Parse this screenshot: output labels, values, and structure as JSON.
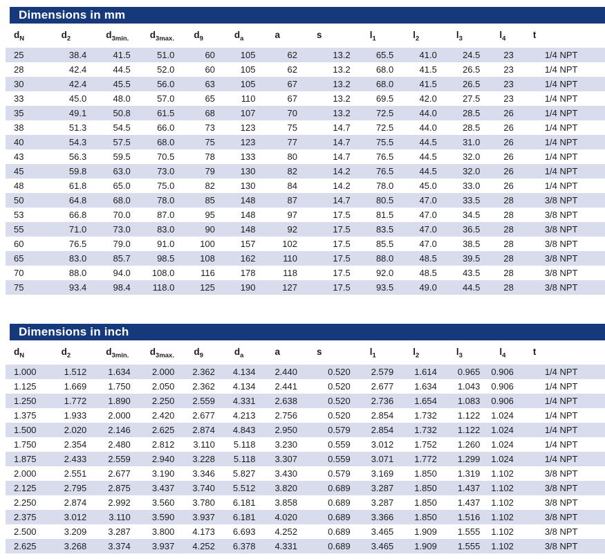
{
  "colors": {
    "title_bar_bg": "#15397b",
    "title_text": "#ffffff",
    "row_shade": "#d9dcec",
    "body_text": "#1c1c1c"
  },
  "columns": [
    {
      "base": "d",
      "sub": "N"
    },
    {
      "base": "d",
      "sub": "2"
    },
    {
      "base": "d",
      "sub": "3min."
    },
    {
      "base": "d",
      "sub": "3max."
    },
    {
      "base": "d",
      "sub": "9"
    },
    {
      "base": "d",
      "sub": "a"
    },
    {
      "base": "a",
      "sub": ""
    },
    {
      "base": "s",
      "sub": ""
    },
    {
      "base": "l",
      "sub": "1"
    },
    {
      "base": "l",
      "sub": "2"
    },
    {
      "base": "l",
      "sub": "3"
    },
    {
      "base": "l",
      "sub": "4"
    },
    {
      "base": "t",
      "sub": ""
    }
  ],
  "tables": [
    {
      "title": "Dimensions in mm",
      "rows": [
        [
          "25",
          "38.4",
          "41.5",
          "51.0",
          "60",
          "105",
          "62",
          "13.2",
          "65.5",
          "41.0",
          "24.5",
          "23",
          "1/4 NPT"
        ],
        [
          "28",
          "42.4",
          "44.5",
          "52.0",
          "60",
          "105",
          "62",
          "13.2",
          "68.0",
          "41.5",
          "26.5",
          "23",
          "1/4 NPT"
        ],
        [
          "30",
          "42.4",
          "45.5",
          "56.0",
          "63",
          "105",
          "67",
          "13.2",
          "68.0",
          "41.5",
          "26.5",
          "23",
          "1/4 NPT"
        ],
        [
          "33",
          "45.0",
          "48.0",
          "57.0",
          "65",
          "110",
          "67",
          "13.2",
          "69.5",
          "42.0",
          "27.5",
          "23",
          "1/4 NPT"
        ],
        [
          "35",
          "49.1",
          "50.8",
          "61.5",
          "68",
          "107",
          "70",
          "13.2",
          "72.5",
          "44.0",
          "28.5",
          "26",
          "1/4 NPT"
        ],
        [
          "38",
          "51.3",
          "54.5",
          "66.0",
          "73",
          "123",
          "75",
          "14.7",
          "72.5",
          "44.0",
          "28.5",
          "26",
          "1/4 NPT"
        ],
        [
          "40",
          "54.3",
          "57.5",
          "68.0",
          "75",
          "123",
          "77",
          "14.7",
          "75.5",
          "44.5",
          "31.0",
          "26",
          "1/4 NPT"
        ],
        [
          "43",
          "56.3",
          "59.5",
          "70.5",
          "78",
          "133",
          "80",
          "14.7",
          "76.5",
          "44.5",
          "32.0",
          "26",
          "1/4 NPT"
        ],
        [
          "45",
          "59.8",
          "63.0",
          "73.0",
          "79",
          "130",
          "82",
          "14.2",
          "76.5",
          "44.5",
          "32.0",
          "26",
          "1/4 NPT"
        ],
        [
          "48",
          "61.8",
          "65.0",
          "75.0",
          "82",
          "130",
          "84",
          "14.2",
          "78.0",
          "45.0",
          "33.0",
          "26",
          "1/4 NPT"
        ],
        [
          "50",
          "64.8",
          "68.0",
          "78.0",
          "85",
          "148",
          "87",
          "14.7",
          "80.5",
          "47.0",
          "33.5",
          "28",
          "3/8 NPT"
        ],
        [
          "53",
          "66.8",
          "70.0",
          "87.0",
          "95",
          "148",
          "97",
          "17.5",
          "81.5",
          "47.0",
          "34.5",
          "28",
          "3/8 NPT"
        ],
        [
          "55",
          "71.0",
          "73.0",
          "83.0",
          "90",
          "148",
          "92",
          "17.5",
          "83.5",
          "47.0",
          "36.5",
          "28",
          "3/8 NPT"
        ],
        [
          "60",
          "76.5",
          "79.0",
          "91.0",
          "100",
          "157",
          "102",
          "17.5",
          "85.5",
          "47.0",
          "38.5",
          "28",
          "3/8 NPT"
        ],
        [
          "65",
          "83.0",
          "85.7",
          "98.5",
          "108",
          "162",
          "110",
          "17.5",
          "88.0",
          "48.5",
          "39.5",
          "28",
          "3/8 NPT"
        ],
        [
          "70",
          "88.0",
          "94.0",
          "108.0",
          "116",
          "178",
          "118",
          "17.5",
          "92.0",
          "48.5",
          "43.5",
          "28",
          "3/8 NPT"
        ],
        [
          "75",
          "93.4",
          "98.4",
          "118.0",
          "125",
          "190",
          "127",
          "17.5",
          "93.5",
          "49.0",
          "44.5",
          "28",
          "3/8 NPT"
        ]
      ]
    },
    {
      "title": "Dimensions in inch",
      "rows": [
        [
          "1.000",
          "1.512",
          "1.634",
          "2.000",
          "2.362",
          "4.134",
          "2.440",
          "0.520",
          "2.579",
          "1.614",
          "0.965",
          "0.906",
          "1/4 NPT"
        ],
        [
          "1.125",
          "1.669",
          "1.750",
          "2.050",
          "2.362",
          "4.134",
          "2.441",
          "0.520",
          "2.677",
          "1.634",
          "1.043",
          "0.906",
          "1/4 NPT"
        ],
        [
          "1.250",
          "1.772",
          "1.890",
          "2.250",
          "2.559",
          "4.331",
          "2.638",
          "0.520",
          "2.736",
          "1.654",
          "1.083",
          "0.906",
          "1/4 NPT"
        ],
        [
          "1.375",
          "1.933",
          "2.000",
          "2.420",
          "2.677",
          "4.213",
          "2.756",
          "0.520",
          "2.854",
          "1.732",
          "1.122",
          "1.024",
          "1/4 NPT"
        ],
        [
          "1.500",
          "2.020",
          "2.146",
          "2.625",
          "2.874",
          "4.843",
          "2.950",
          "0.579",
          "2.854",
          "1.732",
          "1.122",
          "1.024",
          "1/4 NPT"
        ],
        [
          "1.750",
          "2.354",
          "2.480",
          "2.812",
          "3.110",
          "5.118",
          "3.230",
          "0.559",
          "3.012",
          "1.752",
          "1.260",
          "1.024",
          "1/4 NPT"
        ],
        [
          "1.875",
          "2.433",
          "2.559",
          "2.940",
          "3.228",
          "5.118",
          "3.307",
          "0.559",
          "3.071",
          "1.772",
          "1.299",
          "1.024",
          "1/4 NPT"
        ],
        [
          "2.000",
          "2.551",
          "2.677",
          "3.190",
          "3.346",
          "5.827",
          "3.430",
          "0.579",
          "3.169",
          "1.850",
          "1.319",
          "1.102",
          "3/8 NPT"
        ],
        [
          "2.125",
          "2.795",
          "2.875",
          "3.437",
          "3.740",
          "5.512",
          "3.820",
          "0.689",
          "3.287",
          "1.850",
          "1.437",
          "1.102",
          "3/8 NPT"
        ],
        [
          "2.250",
          "2.874",
          "2.992",
          "3.560",
          "3.780",
          "6.181",
          "3.858",
          "0.689",
          "3.287",
          "1.850",
          "1.437",
          "1.102",
          "3/8 NPT"
        ],
        [
          "2.375",
          "3.012",
          "3.110",
          "3.590",
          "3.937",
          "6.181",
          "4.020",
          "0.689",
          "3.366",
          "1.850",
          "1.516",
          "1.102",
          "3/8 NPT"
        ],
        [
          "2.500",
          "3.209",
          "3.287",
          "3.800",
          "4.173",
          "6.693",
          "4.252",
          "0.689",
          "3.465",
          "1.909",
          "1.555",
          "1.102",
          "3/8 NPT"
        ],
        [
          "2.625",
          "3.268",
          "3.374",
          "3.937",
          "4.252",
          "6.378",
          "4.331",
          "0.689",
          "3.465",
          "1.909",
          "1.555",
          "1.102",
          "3/8 NPT"
        ]
      ]
    }
  ]
}
